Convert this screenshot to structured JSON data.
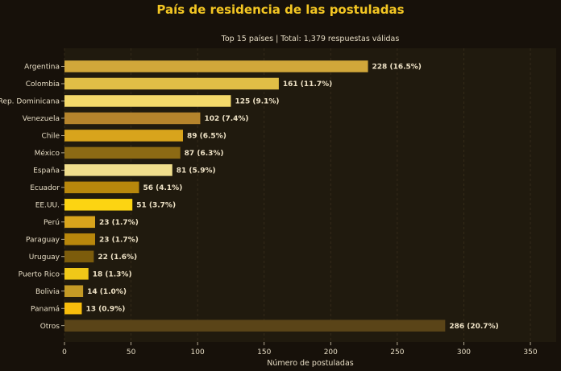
{
  "chart_data": {
    "type": "bar",
    "orientation": "horizontal",
    "title": "País de residencia de las postuladas",
    "subtitle": "Top 15 países  |  Total: 1,379 respuestas válidas",
    "xlabel": "Número de postuladas",
    "ylabel": "",
    "xlim": [
      0,
      370
    ],
    "xticks": [
      0,
      50,
      100,
      150,
      200,
      250,
      300,
      350
    ],
    "grid": true,
    "categories": [
      "Argentina",
      "Colombia",
      "Rep. Dominicana",
      "Venezuela",
      "Chile",
      "México",
      "España",
      "Ecuador",
      "EE.UU.",
      "Perú",
      "Paraguay",
      "Uruguay",
      "Puerto Rico",
      "Bolivia",
      "Panamá",
      "Otros"
    ],
    "values": [
      228,
      161,
      125,
      102,
      89,
      87,
      81,
      56,
      51,
      23,
      23,
      22,
      18,
      14,
      13,
      286
    ],
    "labels": [
      "228  (16.5%)",
      "161  (11.7%)",
      "125  (9.1%)",
      "102  (7.4%)",
      "89  (6.5%)",
      "87  (6.3%)",
      "81  (5.9%)",
      "56  (4.1%)",
      "51  (3.7%)",
      "23  (1.7%)",
      "23  (1.7%)",
      "22  (1.6%)",
      "18  (1.3%)",
      "14  (1.0%)",
      "13  (0.9%)",
      "286  (20.7%)"
    ],
    "colors": [
      "#d1a73a",
      "#e0be46",
      "#f4d96a",
      "#b5842c",
      "#d8a41c",
      "#8c6a14",
      "#f0de8c",
      "#b8870c",
      "#fcd412",
      "#d8a41c",
      "#b8870c",
      "#7c5c0c",
      "#f0c818",
      "#c49a25",
      "#f8bd0c",
      "#5a4418"
    ]
  }
}
